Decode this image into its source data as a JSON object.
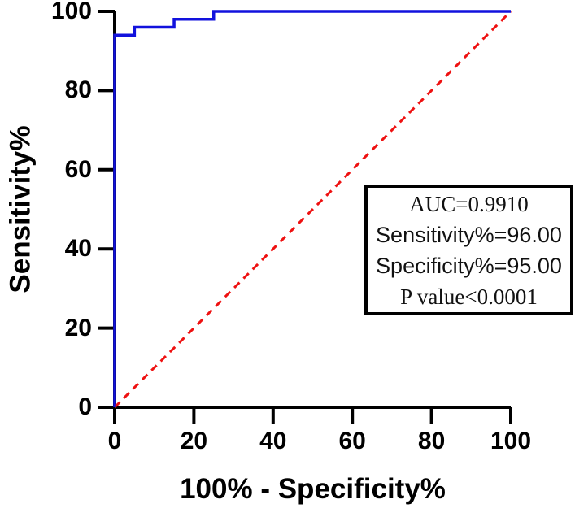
{
  "chart_data": {
    "type": "line",
    "subtype": "roc-curve",
    "title": "",
    "xlabel": "100% - Specificity%",
    "ylabel": "Sensitivity%",
    "xlim": [
      0,
      100
    ],
    "ylim": [
      0,
      100
    ],
    "x_ticks": [
      0,
      20,
      40,
      60,
      80,
      100
    ],
    "y_ticks": [
      0,
      20,
      40,
      60,
      80,
      100
    ],
    "grid": false,
    "legend_position": "none",
    "background_color": "#ffffff",
    "axis_color": "#000000",
    "series": [
      {
        "name": "ROC curve",
        "color": "#1212dd",
        "line_style": "solid",
        "line_width": 3.5,
        "points": [
          [
            0,
            0
          ],
          [
            0,
            94
          ],
          [
            5,
            94
          ],
          [
            5,
            96
          ],
          [
            15,
            96
          ],
          [
            15,
            98
          ],
          [
            25,
            98
          ],
          [
            25,
            100
          ],
          [
            100,
            100
          ]
        ]
      },
      {
        "name": "Reference diagonal",
        "color": "#ee1111",
        "line_style": "dashed",
        "line_width": 3,
        "points": [
          [
            0,
            0
          ],
          [
            100,
            100
          ]
        ]
      }
    ],
    "annotation_box": {
      "lines": [
        {
          "text": "AUC=0.9910",
          "font": "serif"
        },
        {
          "text": "Sensitivity%=96.00",
          "font": "sans"
        },
        {
          "text": "Specificity%=95.00",
          "font": "sans"
        },
        {
          "text": "P value<0.0001",
          "font": "serif"
        }
      ]
    }
  }
}
